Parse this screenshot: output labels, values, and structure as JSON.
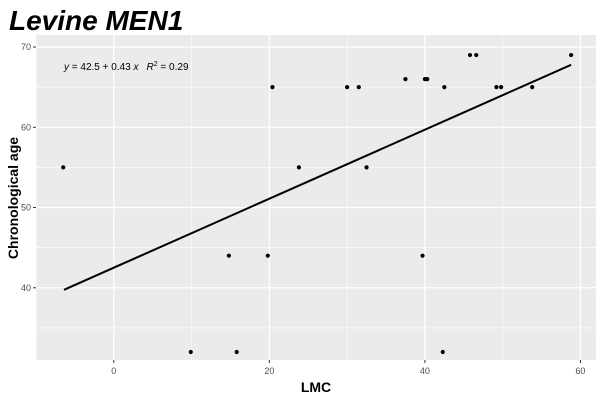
{
  "chart_data": {
    "type": "scatter",
    "title": "Levine MEN1",
    "xlabel": "LMC",
    "ylabel": "Chronological age",
    "xlim": [
      -10,
      62
    ],
    "ylim": [
      31,
      71.5
    ],
    "x_ticks": [
      0,
      20,
      40,
      60
    ],
    "y_ticks": [
      40,
      50,
      60,
      70
    ],
    "grid": true,
    "background": "#ebebeb",
    "gridline_color": "#ffffff",
    "point_color": "#000000",
    "annotation": {
      "y_var": "y",
      "equation_part": " = 42.5 + 0.43 ",
      "x_var": "x",
      "r_var": "R",
      "r_exp": "2",
      "r_value": " = 0.29"
    },
    "regression": {
      "intercept": 42.5,
      "slope": 0.43,
      "x_range": [
        -6.4,
        58.8
      ]
    },
    "points": [
      {
        "x": -6.5,
        "y": 55
      },
      {
        "x": 9.9,
        "y": 32
      },
      {
        "x": 14.8,
        "y": 44
      },
      {
        "x": 15.8,
        "y": 32
      },
      {
        "x": 19.8,
        "y": 44
      },
      {
        "x": 20.4,
        "y": 65
      },
      {
        "x": 23.8,
        "y": 55
      },
      {
        "x": 30.0,
        "y": 65
      },
      {
        "x": 31.5,
        "y": 65
      },
      {
        "x": 32.5,
        "y": 55
      },
      {
        "x": 37.5,
        "y": 66
      },
      {
        "x": 39.7,
        "y": 44
      },
      {
        "x": 40.0,
        "y": 66
      },
      {
        "x": 40.3,
        "y": 66
      },
      {
        "x": 42.3,
        "y": 32
      },
      {
        "x": 42.5,
        "y": 65
      },
      {
        "x": 45.8,
        "y": 69
      },
      {
        "x": 46.6,
        "y": 69
      },
      {
        "x": 49.2,
        "y": 65
      },
      {
        "x": 49.8,
        "y": 65
      },
      {
        "x": 53.8,
        "y": 65
      },
      {
        "x": 58.8,
        "y": 69
      }
    ]
  }
}
